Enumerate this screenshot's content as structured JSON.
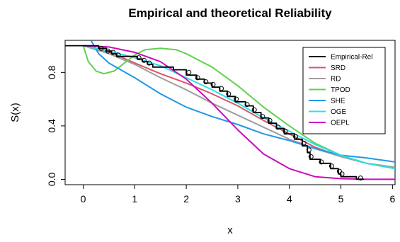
{
  "chart_data": {
    "type": "line",
    "title": "Empirical and theoretical Reliability",
    "xlabel": "x",
    "ylabel": "S(x)",
    "xlim": [
      -0.35,
      6.05
    ],
    "ylim": [
      -0.04,
      1.04
    ],
    "x_ticks": [
      0,
      1,
      2,
      3,
      4,
      5,
      6
    ],
    "y_ticks": [
      0.0,
      0.4,
      0.8
    ],
    "y_tick_labels": [
      "0.0",
      "0.4",
      "0.8"
    ],
    "grid": false,
    "legend_position": "top-right",
    "series": [
      {
        "name": "Empirical-Rel",
        "color": "#000000",
        "kind": "step",
        "points": [
          [
            -0.35,
            1.0
          ],
          [
            0.3,
            1.0
          ],
          [
            0.3,
            0.98
          ],
          [
            0.45,
            0.98
          ],
          [
            0.45,
            0.96
          ],
          [
            0.55,
            0.96
          ],
          [
            0.55,
            0.94
          ],
          [
            0.65,
            0.94
          ],
          [
            0.65,
            0.92
          ],
          [
            1.05,
            0.92
          ],
          [
            1.05,
            0.9
          ],
          [
            1.15,
            0.9
          ],
          [
            1.15,
            0.88
          ],
          [
            1.25,
            0.88
          ],
          [
            1.25,
            0.86
          ],
          [
            1.35,
            0.86
          ],
          [
            1.35,
            0.84
          ],
          [
            1.75,
            0.84
          ],
          [
            1.75,
            0.82
          ],
          [
            2.0,
            0.82
          ],
          [
            2.0,
            0.78
          ],
          [
            2.2,
            0.78
          ],
          [
            2.2,
            0.75
          ],
          [
            2.35,
            0.75
          ],
          [
            2.35,
            0.72
          ],
          [
            2.5,
            0.72
          ],
          [
            2.5,
            0.69
          ],
          [
            2.65,
            0.69
          ],
          [
            2.65,
            0.66
          ],
          [
            2.8,
            0.66
          ],
          [
            2.8,
            0.62
          ],
          [
            2.95,
            0.62
          ],
          [
            2.95,
            0.58
          ],
          [
            3.15,
            0.58
          ],
          [
            3.15,
            0.55
          ],
          [
            3.3,
            0.55
          ],
          [
            3.3,
            0.5
          ],
          [
            3.45,
            0.5
          ],
          [
            3.45,
            0.46
          ],
          [
            3.6,
            0.46
          ],
          [
            3.6,
            0.42
          ],
          [
            3.75,
            0.42
          ],
          [
            3.75,
            0.38
          ],
          [
            3.9,
            0.38
          ],
          [
            3.9,
            0.34
          ],
          [
            4.1,
            0.34
          ],
          [
            4.1,
            0.3
          ],
          [
            4.25,
            0.3
          ],
          [
            4.25,
            0.25
          ],
          [
            4.35,
            0.25
          ],
          [
            4.35,
            0.2
          ],
          [
            4.4,
            0.2
          ],
          [
            4.4,
            0.15
          ],
          [
            4.6,
            0.15
          ],
          [
            4.6,
            0.12
          ],
          [
            4.8,
            0.12
          ],
          [
            4.8,
            0.08
          ],
          [
            4.95,
            0.08
          ],
          [
            4.95,
            0.04
          ],
          [
            5.0,
            0.04
          ],
          [
            5.0,
            0.02
          ],
          [
            5.3,
            0.02
          ],
          [
            5.3,
            0.0
          ],
          [
            5.45,
            0.0
          ]
        ],
        "circles": [
          [
            0.35,
            0.98
          ],
          [
            0.48,
            0.96
          ],
          [
            0.58,
            0.95
          ],
          [
            0.68,
            0.93
          ],
          [
            1.08,
            0.91
          ],
          [
            1.18,
            0.89
          ],
          [
            1.28,
            0.87
          ],
          [
            2.05,
            0.8
          ],
          [
            2.22,
            0.76
          ],
          [
            2.38,
            0.73
          ],
          [
            2.52,
            0.71
          ],
          [
            2.68,
            0.68
          ],
          [
            2.82,
            0.64
          ],
          [
            2.97,
            0.6
          ],
          [
            3.18,
            0.56
          ],
          [
            3.32,
            0.52
          ],
          [
            3.48,
            0.47
          ],
          [
            3.62,
            0.44
          ],
          [
            3.78,
            0.39
          ],
          [
            3.92,
            0.36
          ],
          [
            4.12,
            0.32
          ],
          [
            4.28,
            0.27
          ],
          [
            4.38,
            0.22
          ],
          [
            4.42,
            0.17
          ],
          [
            4.62,
            0.13
          ],
          [
            4.82,
            0.1
          ],
          [
            4.97,
            0.06
          ],
          [
            5.02,
            0.04
          ],
          [
            5.38,
            0.01
          ]
        ]
      },
      {
        "name": "SRD",
        "color": "#df536b",
        "points": [
          [
            0,
            1.0
          ],
          [
            0.5,
            0.955
          ],
          [
            1.0,
            0.87
          ],
          [
            1.5,
            0.79
          ],
          [
            2.0,
            0.72
          ],
          [
            2.5,
            0.64
          ],
          [
            3.0,
            0.55
          ],
          [
            3.5,
            0.44
          ],
          [
            4.0,
            0.34
          ],
          [
            4.5,
            0.24
          ],
          [
            5.0,
            0.17
          ],
          [
            5.5,
            0.12
          ],
          [
            6.05,
            0.08
          ]
        ]
      },
      {
        "name": "RD",
        "color": "#9e9e9e",
        "points": [
          [
            0,
            1.0
          ],
          [
            0.5,
            0.94
          ],
          [
            1.0,
            0.86
          ],
          [
            1.5,
            0.76
          ],
          [
            2.0,
            0.67
          ],
          [
            2.5,
            0.57
          ],
          [
            3.0,
            0.48
          ],
          [
            3.5,
            0.39
          ],
          [
            4.0,
            0.3
          ],
          [
            4.5,
            0.23
          ],
          [
            5.0,
            0.17
          ],
          [
            5.5,
            0.12
          ],
          [
            6.05,
            0.09
          ]
        ]
      },
      {
        "name": "TPOD",
        "color": "#61d04f",
        "points": [
          [
            0,
            1.0
          ],
          [
            0.1,
            0.88
          ],
          [
            0.25,
            0.81
          ],
          [
            0.4,
            0.79
          ],
          [
            0.6,
            0.81
          ],
          [
            0.8,
            0.87
          ],
          [
            1.0,
            0.93
          ],
          [
            1.2,
            0.97
          ],
          [
            1.5,
            0.98
          ],
          [
            1.8,
            0.97
          ],
          [
            2.0,
            0.94
          ],
          [
            2.5,
            0.84
          ],
          [
            3.0,
            0.7
          ],
          [
            3.5,
            0.54
          ],
          [
            4.0,
            0.4
          ],
          [
            4.5,
            0.27
          ],
          [
            5.0,
            0.18
          ],
          [
            5.5,
            0.12
          ],
          [
            6.05,
            0.08
          ]
        ]
      },
      {
        "name": "SHE",
        "color": "#2297e6",
        "points": [
          [
            0.15,
            1.04
          ],
          [
            0.3,
            0.94
          ],
          [
            0.5,
            0.87
          ],
          [
            1.0,
            0.76
          ],
          [
            1.5,
            0.64
          ],
          [
            2.0,
            0.54
          ],
          [
            2.5,
            0.47
          ],
          [
            3.0,
            0.41
          ],
          [
            3.5,
            0.34
          ],
          [
            4.0,
            0.29
          ],
          [
            4.5,
            0.23
          ],
          [
            5.0,
            0.18
          ],
          [
            5.5,
            0.16
          ],
          [
            6.05,
            0.13
          ]
        ]
      },
      {
        "name": "OGE",
        "color": "#28e2e5",
        "points": [
          [
            0,
            1.0
          ],
          [
            0.5,
            0.96
          ],
          [
            1.0,
            0.91
          ],
          [
            1.5,
            0.85
          ],
          [
            2.0,
            0.76
          ],
          [
            2.5,
            0.67
          ],
          [
            3.0,
            0.57
          ],
          [
            3.5,
            0.46
          ],
          [
            4.0,
            0.36
          ],
          [
            4.5,
            0.26
          ],
          [
            5.0,
            0.18
          ],
          [
            5.5,
            0.12
          ],
          [
            6.05,
            0.08
          ]
        ]
      },
      {
        "name": "OEPL",
        "color": "#cd0bbc",
        "points": [
          [
            0,
            1.0
          ],
          [
            0.5,
            0.99
          ],
          [
            1.0,
            0.95
          ],
          [
            1.5,
            0.88
          ],
          [
            2.0,
            0.75
          ],
          [
            2.5,
            0.57
          ],
          [
            3.0,
            0.37
          ],
          [
            3.5,
            0.19
          ],
          [
            4.0,
            0.08
          ],
          [
            4.5,
            0.02
          ],
          [
            5.0,
            0.005
          ],
          [
            5.5,
            0.0
          ],
          [
            6.05,
            0.0
          ]
        ]
      }
    ]
  }
}
